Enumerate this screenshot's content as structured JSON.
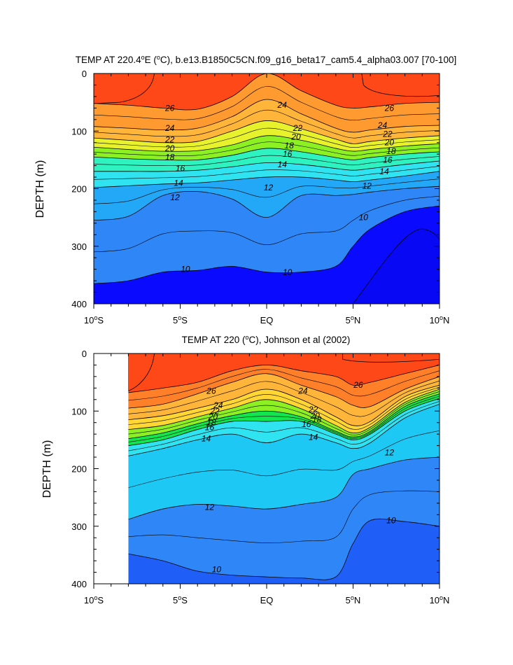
{
  "chart_data": [
    {
      "type": "heatmap",
      "subtype": "filled-contour",
      "title": "TEMP AT 220.4",
      "title_sup_deg": "o",
      "title_rest": "E (",
      "title_unit_sup": "o",
      "title_unit": "C), b.e13.B1850C5CN.f09_g16_beta17_cam5.4_alpha03.007 [70-100]",
      "ylabel": "DEPTH (m)",
      "ylim": [
        400,
        0
      ],
      "xlim": [
        -10,
        10
      ],
      "yticks": [
        "0",
        "100",
        "200",
        "300",
        "400"
      ],
      "xticks": [
        {
          "pre": "10",
          "sup": "o",
          "post": "S"
        },
        {
          "pre": "5",
          "sup": "o",
          "post": "S"
        },
        {
          "pre": "EQ",
          "sup": "",
          "post": ""
        },
        {
          "pre": "5",
          "sup": "o",
          "post": "N"
        },
        {
          "pre": "10",
          "sup": "o",
          "post": "N"
        }
      ],
      "contour_labels": [
        "26",
        "24",
        "22",
        "20",
        "18",
        "16",
        "14",
        "12",
        "10",
        "26",
        "24",
        "22",
        "20",
        "18",
        "16",
        "14",
        "12",
        "10",
        "24",
        "22",
        "20",
        "18",
        "16",
        "14",
        "12",
        "10"
      ],
      "isotherm_depths": {
        "x": [
          -10,
          -8,
          -6,
          -4,
          -2,
          0,
          2,
          4,
          5,
          6,
          8,
          10
        ],
        "t26": [
          52,
          55,
          60,
          62,
          40,
          0,
          30,
          55,
          60,
          58,
          52,
          50
        ],
        "t24": [
          92,
          95,
          98,
          95,
          75,
          45,
          70,
          95,
          102,
          98,
          92,
          90
        ],
        "t22": [
          112,
          116,
          120,
          118,
          100,
          82,
          96,
          114,
          122,
          118,
          112,
          108
        ],
        "t20": [
          128,
          132,
          135,
          134,
          124,
          108,
          116,
          130,
          135,
          132,
          126,
          122
        ],
        "t18": [
          145,
          148,
          150,
          150,
          142,
          130,
          136,
          146,
          150,
          146,
          140,
          136
        ],
        "t16": [
          170,
          170,
          170,
          168,
          162,
          155,
          158,
          165,
          168,
          165,
          158,
          152
        ],
        "t14": [
          198,
          195,
          192,
          190,
          185,
          180,
          180,
          185,
          188,
          185,
          178,
          170
        ],
        "t12": [
          255,
          248,
          212,
          205,
          218,
          250,
          212,
          212,
          210,
          206,
          200,
          196
        ],
        "t10": [
          365,
          360,
          345,
          342,
          335,
          345,
          345,
          335,
          300,
          270,
          240,
          230
        ]
      },
      "colors": [
        "#0a0aff",
        "#1f5ff8",
        "#2f86f7",
        "#22a8f7",
        "#1ec8f5",
        "#30e3f0",
        "#2ef2c0",
        "#12e64f",
        "#8cf022",
        "#e8f22c",
        "#ffd633",
        "#ffb43a",
        "#ff9a30",
        "#ff8028",
        "#ff4818"
      ]
    },
    {
      "type": "heatmap",
      "subtype": "filled-contour",
      "title": "TEMP AT 220 (",
      "title_unit_sup": "o",
      "title_unit": "C), Johnson et al (2002)",
      "ylabel": "DEPTH (m)",
      "ylim": [
        400,
        0
      ],
      "xlim": [
        -10,
        10
      ],
      "data_xlim": [
        -8,
        10
      ],
      "yticks": [
        "0",
        "100",
        "200",
        "300",
        "400"
      ],
      "xticks": [
        {
          "pre": "10",
          "sup": "o",
          "post": "S"
        },
        {
          "pre": "5",
          "sup": "o",
          "post": "S"
        },
        {
          "pre": "EQ",
          "sup": "",
          "post": ""
        },
        {
          "pre": "5",
          "sup": "o",
          "post": "N"
        },
        {
          "pre": "10",
          "sup": "o",
          "post": "N"
        }
      ],
      "contour_labels": [
        "26",
        "24",
        "22",
        "20",
        "18",
        "16",
        "14",
        "12",
        "10",
        "26",
        "24",
        "22",
        "20",
        "18",
        "16",
        "14",
        "12",
        "10"
      ],
      "isotherm_depths": {
        "x": [
          -8,
          -6,
          -4,
          -2,
          0,
          2,
          4,
          5,
          6,
          8,
          10
        ],
        "t26": [
          68,
          60,
          50,
          30,
          20,
          30,
          40,
          55,
          50,
          35,
          20
        ],
        "t24": [
          95,
          88,
          70,
          50,
          35,
          55,
          75,
          90,
          92,
          62,
          40
        ],
        "t22": [
          115,
          108,
          95,
          80,
          62,
          80,
          110,
          125,
          118,
          75,
          55
        ],
        "t20": [
          132,
          125,
          110,
          95,
          80,
          96,
          125,
          138,
          128,
          85,
          62
        ],
        "t18": [
          148,
          138,
          122,
          108,
          100,
          110,
          135,
          145,
          135,
          92,
          70
        ],
        "t16": [
          160,
          150,
          132,
          118,
          118,
          118,
          140,
          150,
          140,
          100,
          78
        ],
        "t14": [
          178,
          165,
          150,
          140,
          155,
          140,
          155,
          165,
          155,
          112,
          88
        ],
        "t12": [
          288,
          270,
          262,
          265,
          270,
          262,
          250,
          210,
          200,
          185,
          180
        ],
        "t10": [
          348,
          360,
          378,
          385,
          388,
          390,
          388,
          330,
          290,
          292,
          300
        ]
      },
      "colors": [
        "#1f5ff8",
        "#2f86f7",
        "#22a8f7",
        "#1ec8f5",
        "#30e3f0",
        "#2ef2c0",
        "#12e64f",
        "#8cf022",
        "#e8f22c",
        "#ffd633",
        "#ffb43a",
        "#ff9a30",
        "#ff8028",
        "#ff4818"
      ]
    }
  ]
}
